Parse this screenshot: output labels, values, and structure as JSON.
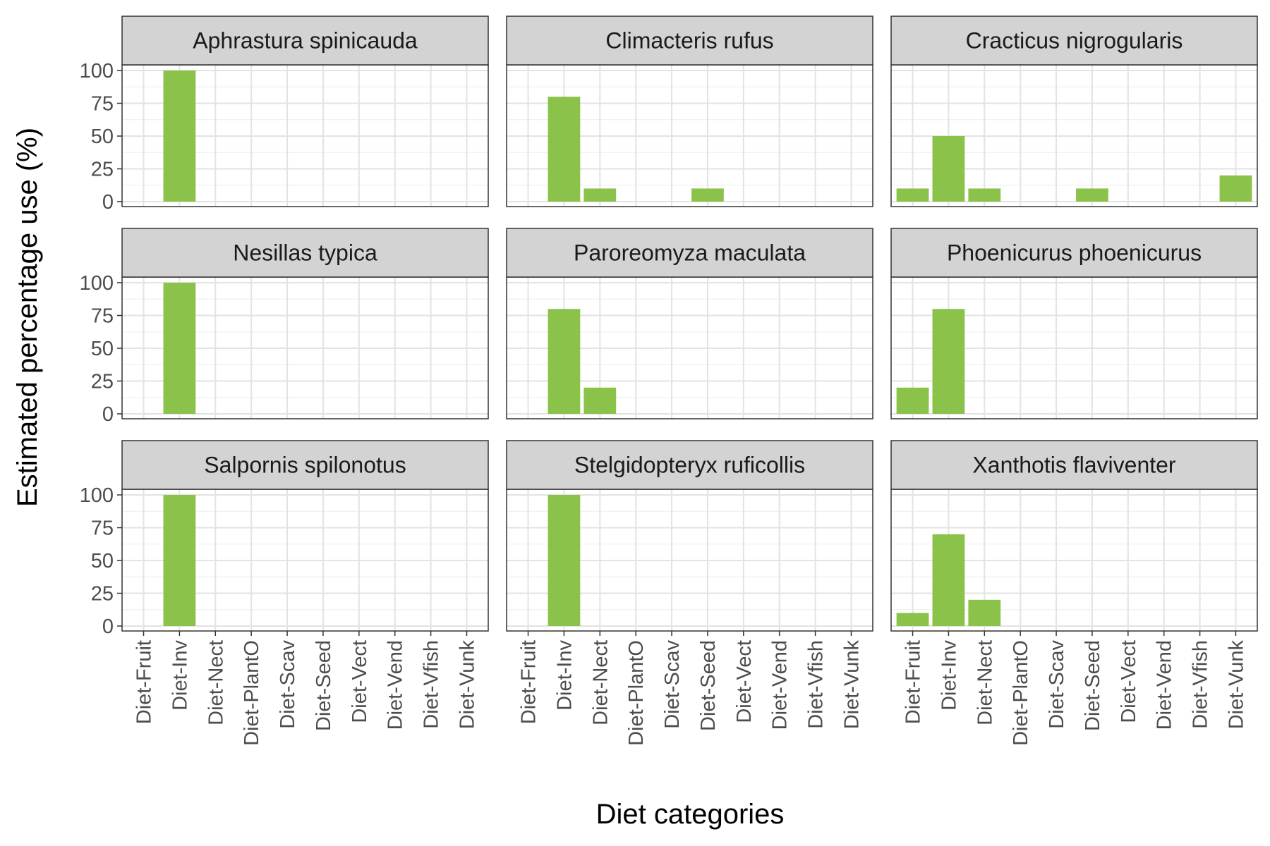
{
  "chart_data": {
    "type": "bar",
    "xlabel": "Diet categories",
    "ylabel": "Estimated percentage use (%)",
    "ylim": [
      0,
      120
    ],
    "yticks": [
      0,
      25,
      50,
      75,
      100
    ],
    "grid": true,
    "bar_color": "#8bc34a",
    "categories": [
      "Diet-Fruit",
      "Diet-Inv",
      "Diet-Nect",
      "Diet-PlantO",
      "Diet-Scav",
      "Diet-Seed",
      "Diet-Vect",
      "Diet-Vend",
      "Diet-Vfish",
      "Diet-Vunk"
    ],
    "panels": [
      {
        "title": "Aphrastura spinicauda",
        "values": [
          0,
          100,
          0,
          0,
          0,
          0,
          0,
          0,
          0,
          0
        ]
      },
      {
        "title": "Climacteris rufus",
        "values": [
          0,
          80,
          10,
          0,
          0,
          10,
          0,
          0,
          0,
          0
        ]
      },
      {
        "title": "Cracticus nigrogularis",
        "values": [
          10,
          50,
          10,
          0,
          0,
          10,
          0,
          0,
          0,
          20
        ]
      },
      {
        "title": "Nesillas typica",
        "values": [
          0,
          100,
          0,
          0,
          0,
          0,
          0,
          0,
          0,
          0
        ]
      },
      {
        "title": "Paroreomyza maculata",
        "values": [
          0,
          80,
          20,
          0,
          0,
          0,
          0,
          0,
          0,
          0
        ]
      },
      {
        "title": "Phoenicurus phoenicurus",
        "values": [
          20,
          80,
          0,
          0,
          0,
          0,
          0,
          0,
          0,
          0
        ]
      },
      {
        "title": "Salpornis spilonotus",
        "values": [
          0,
          100,
          0,
          0,
          0,
          0,
          0,
          0,
          0,
          0
        ]
      },
      {
        "title": "Stelgidopteryx ruficollis",
        "values": [
          0,
          100,
          0,
          0,
          0,
          0,
          0,
          0,
          0,
          0
        ]
      },
      {
        "title": "Xanthotis flaviventer",
        "values": [
          10,
          70,
          20,
          0,
          0,
          0,
          0,
          0,
          0,
          0
        ]
      }
    ]
  }
}
